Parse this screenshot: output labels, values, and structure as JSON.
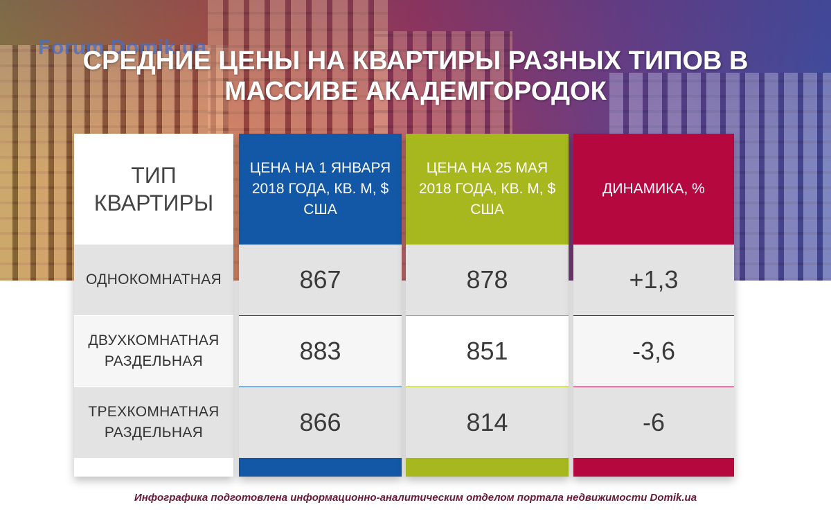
{
  "watermark": "Forum.Domik.ua",
  "title": "СРЕДНИЕ ЦЕНЫ НА КВАРТИРЫ РАЗНЫХ ТИПОВ В МАССИВЕ АКАДЕМГОРОДОК",
  "colors": {
    "col_price_jan": "#1358a7",
    "col_price_may": "#a7b81f",
    "col_dynamics": "#b5083f"
  },
  "chart_data": {
    "type": "table",
    "columns": [
      "ТИП КВАРТИРЫ",
      "ЦЕНА НА 1 ЯНВАРЯ 2018 ГОДА, КВ. М, $ США",
      "ЦЕНА НА 25 МАЯ 2018 ГОДА, КВ. М, $ США",
      "ДИНАМИКА, %"
    ],
    "rows": [
      {
        "type": "ОДНОКОМНАТНАЯ",
        "price_jan": "867",
        "price_may": "878",
        "dynamics": "+1,3"
      },
      {
        "type": "ДВУХКОМНАТНАЯ РАЗДЕЛЬНАЯ",
        "price_jan": "883",
        "price_may": "851",
        "dynamics": "-3,6"
      },
      {
        "type": "ТРЕХКОМНАТНАЯ РАЗДЕЛЬНАЯ",
        "price_jan": "866",
        "price_may": "814",
        "dynamics": "-6"
      }
    ]
  },
  "footer": "Инфографика подготовлена информационно-аналитическим отделом портала недвижимости Domik.ua"
}
